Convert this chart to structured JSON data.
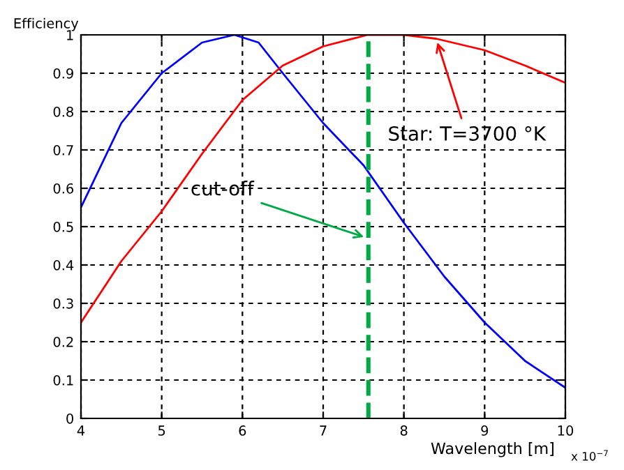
{
  "chart_data": {
    "type": "line",
    "ylabel": "Efficiency",
    "xlabel": "Wavelength [m]",
    "xlim": [
      4,
      10
    ],
    "xticks": [
      4,
      5,
      6,
      7,
      8,
      9,
      10
    ],
    "ylim": [
      0,
      1
    ],
    "yticks": [
      0,
      0.1,
      0.2,
      0.3,
      0.4,
      0.5,
      0.6,
      0.7,
      0.8,
      0.9,
      1
    ],
    "grid": true,
    "line_style": "solid",
    "series": [
      {
        "color": "#0000ff",
        "x": [
          4,
          4.5,
          5,
          5.5,
          5.9,
          6.2,
          6.5,
          7,
          7.5,
          8,
          8.5,
          9,
          9.5,
          10
        ],
        "values": [
          0.55,
          0.77,
          0.9,
          0.98,
          1.0,
          0.98,
          0.9,
          0.77,
          0.66,
          0.51,
          0.37,
          0.25,
          0.15,
          0.08
        ]
      },
      {
        "color": "#ff0000",
        "x": [
          4,
          4.5,
          5,
          5.5,
          6,
          6.5,
          7,
          7.55,
          8,
          8.4,
          9,
          9.5,
          10
        ],
        "values": [
          0.25,
          0.41,
          0.54,
          0.69,
          0.83,
          0.92,
          0.97,
          1.0,
          1.0,
          0.99,
          0.96,
          0.92,
          0.875
        ]
      }
    ],
    "ref_lines": [
      {
        "axis": "x",
        "value": 7.56,
        "color": "#00aa44",
        "line_style": "dashed"
      }
    ],
    "annotations": [
      {
        "text": "Star: T=3700 °K",
        "x": 8.4,
        "y": 0.99
      },
      {
        "text": "cut-off",
        "x": 7.55,
        "y": 0.47
      },
      "x 10$^{−7}$"
    ]
  }
}
